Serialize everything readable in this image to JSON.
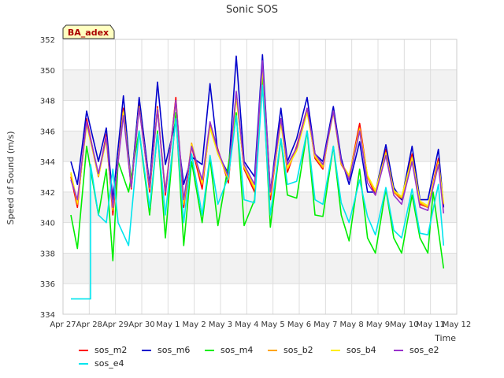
{
  "chart_data": {
    "type": "line",
    "title": "Sonic SOS",
    "xlabel": "Time",
    "ylabel": "Speed of Sound (m/s)",
    "badge": "BA_adex",
    "ylim": [
      334,
      352
    ],
    "yticks": [
      334,
      336,
      338,
      340,
      342,
      344,
      346,
      348,
      350,
      352
    ],
    "xlim": [
      0,
      15
    ],
    "xticks": [
      {
        "x": 0,
        "label": "Apr 27"
      },
      {
        "x": 1,
        "label": "Apr 28"
      },
      {
        "x": 2,
        "label": "Apr 29"
      },
      {
        "x": 3,
        "label": "Apr 30"
      },
      {
        "x": 4,
        "label": "May 1"
      },
      {
        "x": 5,
        "label": "May 2"
      },
      {
        "x": 6,
        "label": "May 3"
      },
      {
        "x": 7,
        "label": "May 4"
      },
      {
        "x": 8,
        "label": "May 5"
      },
      {
        "x": 9,
        "label": "May 6"
      },
      {
        "x": 10,
        "label": "May 7"
      },
      {
        "x": 11,
        "label": "May 8"
      },
      {
        "x": 12,
        "label": "May 9"
      },
      {
        "x": 13,
        "label": "May 10"
      },
      {
        "x": 14,
        "label": "May 11"
      },
      {
        "x": 15,
        "label": "May 12"
      }
    ],
    "grid": true,
    "legend_position": "bottom",
    "series": [
      {
        "name": "sos_m2",
        "color": "#ff0000",
        "x": [
          0.3,
          0.55,
          0.9,
          1.35,
          1.65,
          1.9,
          2.3,
          2.6,
          2.9,
          3.3,
          3.6,
          3.9,
          4.3,
          4.6,
          4.9,
          5.3,
          5.6,
          5.9,
          6.3,
          6.6,
          6.9,
          7.3,
          7.6,
          7.9,
          8.3,
          8.55,
          8.9,
          9.3,
          9.6,
          9.9,
          10.3,
          10.6,
          10.9,
          11.3,
          11.6,
          11.9,
          12.3,
          12.6,
          12.9,
          13.3,
          13.6,
          13.9,
          14.3,
          14.5
        ],
        "y": [
          343.0,
          341.0,
          346.8,
          343.0,
          345.8,
          340.5,
          347.5,
          342.2,
          347.8,
          342.0,
          347.6,
          341.8,
          348.2,
          341.0,
          345.0,
          342.2,
          346.5,
          344.8,
          342.6,
          348.5,
          343.5,
          342.0,
          350.5,
          341.5,
          346.8,
          343.3,
          345.0,
          347.5,
          344.2,
          343.5,
          347.5,
          343.8,
          343.0,
          346.5,
          343.0,
          341.8,
          344.8,
          342.0,
          341.5,
          344.5,
          341.2,
          341.0,
          344.2,
          341.0
        ]
      },
      {
        "name": "sos_m6",
        "color": "#0000cc",
        "x": [
          0.3,
          0.55,
          0.9,
          1.35,
          1.65,
          1.9,
          2.3,
          2.6,
          2.9,
          3.3,
          3.6,
          3.9,
          4.3,
          4.6,
          4.9,
          5.3,
          5.6,
          5.9,
          6.3,
          6.6,
          6.9,
          7.3,
          7.6,
          7.9,
          8.3,
          8.55,
          8.9,
          9.3,
          9.6,
          9.9,
          10.3,
          10.6,
          10.9,
          11.3,
          11.6,
          11.9,
          12.3,
          12.6,
          12.9,
          13.3,
          13.6,
          13.9,
          14.3,
          14.5
        ],
        "y": [
          344.0,
          342.5,
          347.3,
          344.0,
          346.2,
          341.5,
          348.3,
          342.5,
          348.2,
          342.5,
          349.2,
          343.8,
          346.7,
          342.5,
          344.3,
          343.8,
          349.1,
          344.5,
          343.2,
          350.9,
          344.0,
          343.0,
          351.0,
          342.0,
          347.5,
          344.0,
          345.5,
          348.2,
          344.5,
          344.0,
          347.6,
          344.2,
          342.5,
          345.3,
          342.0,
          342.0,
          345.1,
          342.3,
          341.5,
          345.0,
          341.5,
          341.5,
          344.8,
          341.0
        ]
      },
      {
        "name": "sos_m4",
        "color": "#00ee00",
        "x": [
          0.3,
          0.55,
          0.9,
          1.35,
          1.65,
          1.9,
          2.1,
          2.5,
          2.9,
          3.3,
          3.6,
          3.9,
          4.3,
          4.6,
          4.9,
          5.3,
          5.6,
          5.9,
          6.3,
          6.6,
          6.9,
          7.3,
          7.6,
          7.9,
          8.3,
          8.55,
          8.9,
          9.3,
          9.6,
          9.9,
          10.3,
          10.6,
          10.9,
          11.3,
          11.6,
          11.9,
          12.3,
          12.6,
          12.9,
          13.3,
          13.6,
          13.9,
          14.1,
          14.5
        ],
        "y": [
          340.5,
          338.3,
          345.0,
          340.5,
          343.5,
          337.5,
          344.0,
          342.0,
          346.0,
          340.5,
          346.0,
          339.0,
          347.2,
          338.5,
          344.0,
          340.0,
          344.2,
          339.8,
          343.8,
          347.2,
          339.8,
          341.5,
          349.8,
          339.7,
          345.5,
          341.8,
          341.6,
          346.0,
          340.5,
          340.4,
          345.0,
          340.5,
          338.8,
          343.5,
          339.0,
          338.0,
          342.2,
          339.0,
          338.0,
          341.8,
          339.0,
          338.0,
          342.0,
          337.0
        ]
      },
      {
        "name": "sos_b2",
        "color": "#ffa500",
        "x": [
          0.3,
          0.55,
          0.9,
          1.35,
          1.65,
          1.9,
          2.3,
          2.6,
          2.9,
          3.3,
          3.6,
          3.9,
          4.3,
          4.6,
          4.9,
          5.3,
          5.6,
          5.9,
          6.3,
          6.6,
          6.9,
          7.3,
          7.6,
          7.9,
          8.3,
          8.55,
          8.9,
          9.3,
          9.6,
          9.9,
          10.3,
          10.6,
          10.9,
          11.3,
          11.6,
          11.9,
          12.3,
          12.6,
          12.9,
          13.3,
          13.6,
          13.9,
          14.3,
          14.5
        ],
        "y": [
          343.2,
          341.2,
          346.5,
          343.0,
          345.5,
          340.8,
          347.3,
          342.3,
          347.6,
          342.2,
          347.5,
          342.0,
          348.0,
          341.2,
          345.2,
          342.5,
          346.3,
          344.6,
          342.8,
          348.3,
          343.6,
          342.2,
          350.3,
          341.8,
          346.6,
          343.5,
          344.8,
          347.3,
          344.3,
          343.6,
          347.3,
          343.8,
          343.0,
          346.2,
          343.0,
          342.0,
          344.6,
          342.0,
          341.6,
          344.3,
          341.3,
          341.0,
          344.0,
          341.2
        ]
      },
      {
        "name": "sos_b4",
        "color": "#ffee00",
        "x": [
          0.3,
          0.55,
          0.9,
          1.35,
          1.65,
          1.9,
          2.3,
          2.6,
          2.9,
          3.3,
          3.6,
          3.9,
          4.3,
          4.6,
          4.9,
          5.3,
          5.6,
          5.9,
          6.3,
          6.6,
          6.9,
          7.3,
          7.6,
          7.9,
          8.3,
          8.55,
          8.9,
          9.3,
          9.6,
          9.9,
          10.3,
          10.6,
          10.9,
          11.3,
          11.6,
          11.9,
          12.3,
          12.6,
          12.9,
          13.3,
          13.6,
          13.9,
          14.3,
          14.5
        ],
        "y": [
          343.3,
          341.3,
          346.4,
          343.1,
          345.4,
          340.9,
          347.2,
          342.4,
          347.5,
          342.3,
          347.4,
          342.1,
          347.9,
          341.3,
          345.1,
          342.6,
          346.2,
          344.5,
          342.9,
          348.2,
          343.7,
          342.3,
          350.2,
          341.9,
          346.5,
          343.6,
          344.7,
          347.2,
          344.4,
          343.7,
          347.2,
          343.9,
          343.1,
          346.1,
          343.1,
          342.1,
          344.5,
          342.1,
          341.7,
          344.2,
          341.4,
          341.1,
          343.9,
          341.3
        ]
      },
      {
        "name": "sos_e2",
        "color": "#9932cc",
        "x": [
          0.3,
          0.55,
          0.9,
          1.35,
          1.65,
          1.9,
          2.3,
          2.6,
          2.9,
          3.3,
          3.6,
          3.9,
          4.3,
          4.6,
          4.9,
          5.3,
          5.6,
          5.9,
          6.3,
          6.6,
          6.9,
          7.3,
          7.6,
          7.9,
          8.3,
          8.55,
          8.9,
          9.3,
          9.6,
          9.9,
          10.3,
          10.6,
          10.9,
          11.3,
          11.6,
          11.9,
          12.3,
          12.6,
          12.9,
          13.3,
          13.6,
          13.9,
          14.3,
          14.5
        ],
        "y": [
          342.8,
          341.5,
          346.6,
          343.2,
          345.6,
          341.0,
          347.0,
          342.3,
          347.5,
          342.3,
          347.4,
          342.0,
          348.0,
          341.5,
          345.0,
          342.8,
          346.6,
          344.7,
          343.0,
          348.6,
          343.8,
          342.5,
          350.6,
          342.0,
          346.8,
          343.8,
          344.9,
          347.5,
          344.5,
          343.8,
          347.3,
          344.0,
          342.8,
          346.0,
          342.6,
          341.8,
          344.4,
          341.8,
          341.2,
          344.0,
          341.0,
          340.8,
          343.8,
          340.6
        ]
      },
      {
        "name": "sos_e4",
        "color": "#00e5ee",
        "x": [
          0.3,
          0.55,
          1.05,
          1.05,
          1.35,
          1.65,
          1.9,
          2.1,
          2.5,
          2.9,
          3.3,
          3.6,
          3.9,
          4.3,
          4.6,
          4.9,
          5.3,
          5.6,
          5.9,
          6.3,
          6.6,
          6.9,
          7.3,
          7.6,
          7.9,
          8.3,
          8.55,
          8.9,
          9.3,
          9.6,
          9.9,
          10.3,
          10.6,
          10.9,
          11.3,
          11.6,
          11.9,
          12.3,
          12.6,
          12.9,
          13.3,
          13.6,
          13.9,
          14.3,
          14.5
        ],
        "y": [
          335.0,
          335.0,
          335.0,
          343.8,
          340.5,
          340.0,
          343.5,
          340.0,
          338.5,
          346.0,
          341.0,
          345.8,
          340.5,
          346.8,
          340.0,
          344.5,
          340.5,
          344.4,
          341.2,
          343.0,
          347.0,
          341.5,
          341.3,
          349.0,
          340.5,
          345.5,
          342.5,
          342.7,
          346.0,
          341.5,
          341.2,
          345.0,
          341.3,
          340.0,
          342.8,
          340.4,
          339.2,
          342.3,
          339.5,
          339.0,
          342.2,
          339.3,
          339.2,
          342.5,
          338.5
        ]
      }
    ]
  }
}
